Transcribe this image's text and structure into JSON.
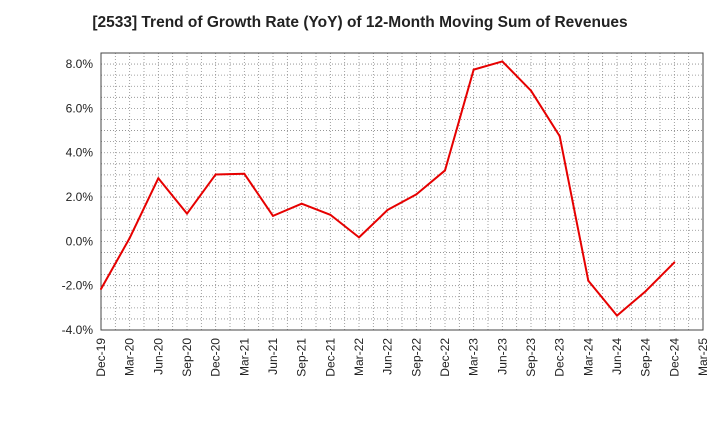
{
  "chart_data": {
    "type": "line",
    "title": "[2533]  Trend of Growth Rate (YoY) of 12-Month Moving Sum of Revenues",
    "xlabel": "",
    "ylabel": "",
    "ylim": [
      -4.0,
      8.5
    ],
    "y_ticks": [
      -4.0,
      -2.0,
      0.0,
      2.0,
      4.0,
      6.0,
      8.0
    ],
    "y_tick_labels": [
      "-4.0%",
      "-2.0%",
      "0.0%",
      "2.0%",
      "4.0%",
      "6.0%",
      "8.0%"
    ],
    "categories": [
      "Dec-19",
      "Mar-20",
      "Jun-20",
      "Sep-20",
      "Dec-20",
      "Mar-21",
      "Jun-21",
      "Sep-21",
      "Dec-21",
      "Mar-22",
      "Jun-22",
      "Sep-22",
      "Dec-22",
      "Mar-23",
      "Jun-23",
      "Sep-23",
      "Dec-23",
      "Mar-24",
      "Jun-24",
      "Sep-24",
      "Dec-24",
      "Mar-25"
    ],
    "series": [
      {
        "name": "",
        "color": "#e60000",
        "values": [
          -2.15,
          0.15,
          2.85,
          1.25,
          3.02,
          3.05,
          1.15,
          1.7,
          1.2,
          0.18,
          1.42,
          2.12,
          3.2,
          7.75,
          8.12,
          6.8,
          4.75,
          -1.78,
          -3.35,
          -2.25,
          -0.95,
          null
        ]
      }
    ],
    "grid": true,
    "legend": "none"
  }
}
